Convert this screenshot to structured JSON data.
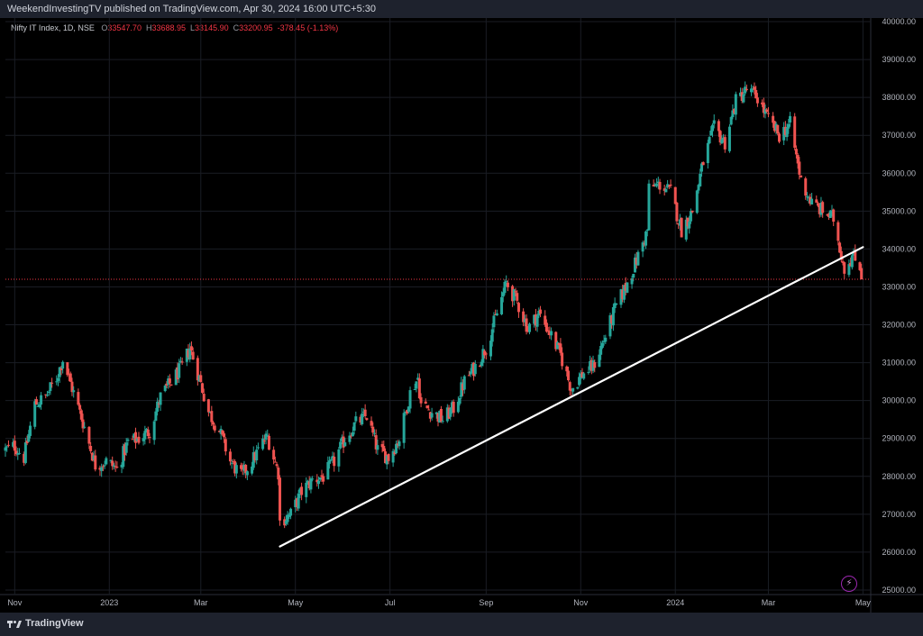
{
  "header": {
    "publisher_text": "WeekendInvestingTV published on TradingView.com, Apr 30, 2024 16:00 UTC+5:30"
  },
  "legend": {
    "symbol": "Nifty IT Index, 1D, NSE",
    "open_label": "O",
    "open": "33547.70",
    "high_label": "H",
    "high": "33688.95",
    "low_label": "L",
    "low": "33145.90",
    "close_label": "C",
    "close": "33200.95",
    "change": "-378.45 (-1.13%)"
  },
  "footer": {
    "brand": "TradingView"
  },
  "colors": {
    "up": "#26a69a",
    "down": "#ef5350",
    "trendline": "#ffffff",
    "price_line": "#f23645",
    "grid": "#1a1d24",
    "axis_text": "#b2b5be"
  },
  "chart_data": {
    "type": "candlestick",
    "price_axis_ticks": [
      "40000.00",
      "39000.00",
      "38000.00",
      "37000.00",
      "36000.00",
      "35000.00",
      "34000.00",
      "33000.00",
      "32000.00",
      "31000.00",
      "30000.00",
      "29000.00",
      "28000.00",
      "27000.00",
      "26000.00",
      "25000.00"
    ],
    "ylim": [
      25000,
      40000
    ],
    "x_axis_labels": [
      "Nov",
      "2023",
      "Mar",
      "May",
      "Jul",
      "Sep",
      "Nov",
      "2024",
      "Mar",
      "May"
    ],
    "x_axis_dates": [
      "2022-11-01",
      "2023-01-01",
      "2023-03-01",
      "2023-05-01",
      "2023-07-01",
      "2023-09-01",
      "2023-11-01",
      "2024-01-01",
      "2024-03-01",
      "2024-05-01"
    ],
    "date_range": [
      "2022-10-26",
      "2024-04-30"
    ],
    "last_price": 33200.95,
    "trendline": {
      "start": {
        "date": "2023-04-21",
        "value": 26150
      },
      "end": {
        "date": "2024-05-01",
        "value": 34050
      }
    },
    "anchor_closes": [
      [
        "2022-10-26",
        28700
      ],
      [
        "2022-11-01",
        28800
      ],
      [
        "2022-11-07",
        28500
      ],
      [
        "2022-11-14",
        29900
      ],
      [
        "2022-11-21",
        30100
      ],
      [
        "2022-11-28",
        30600
      ],
      [
        "2022-12-02",
        31100
      ],
      [
        "2022-12-09",
        30200
      ],
      [
        "2022-12-16",
        29300
      ],
      [
        "2022-12-23",
        28300
      ],
      [
        "2022-12-30",
        28400
      ],
      [
        "2023-01-06",
        28200
      ],
      [
        "2023-01-13",
        28900
      ],
      [
        "2023-01-20",
        29000
      ],
      [
        "2023-01-27",
        29200
      ],
      [
        "2023-02-03",
        30100
      ],
      [
        "2023-02-10",
        30500
      ],
      [
        "2023-02-17",
        30900
      ],
      [
        "2023-02-22",
        31400
      ],
      [
        "2023-02-28",
        30600
      ],
      [
        "2023-03-06",
        29700
      ],
      [
        "2023-03-13",
        29200
      ],
      [
        "2023-03-20",
        28400
      ],
      [
        "2023-03-27",
        28000
      ],
      [
        "2023-04-03",
        28400
      ],
      [
        "2023-04-10",
        28900
      ],
      [
        "2023-04-13",
        29050
      ],
      [
        "2023-04-17",
        28500
      ],
      [
        "2023-04-20",
        28100
      ],
      [
        "2023-04-21",
        26800
      ],
      [
        "2023-04-28",
        27000
      ],
      [
        "2023-05-05",
        27600
      ],
      [
        "2023-05-12",
        27900
      ],
      [
        "2023-05-19",
        28000
      ],
      [
        "2023-05-26",
        28400
      ],
      [
        "2023-06-02",
        29000
      ],
      [
        "2023-06-09",
        29400
      ],
      [
        "2023-06-16",
        29600
      ],
      [
        "2023-06-23",
        28700
      ],
      [
        "2023-06-30",
        28500
      ],
      [
        "2023-07-07",
        29000
      ],
      [
        "2023-07-14",
        30200
      ],
      [
        "2023-07-19",
        30600
      ],
      [
        "2023-07-21",
        29900
      ],
      [
        "2023-07-28",
        29700
      ],
      [
        "2023-08-04",
        29500
      ],
      [
        "2023-08-11",
        29800
      ],
      [
        "2023-08-18",
        30500
      ],
      [
        "2023-08-25",
        30900
      ],
      [
        "2023-09-01",
        31400
      ],
      [
        "2023-09-08",
        32300
      ],
      [
        "2023-09-14",
        33100
      ],
      [
        "2023-09-21",
        32600
      ],
      [
        "2023-09-28",
        31900
      ],
      [
        "2023-10-05",
        32300
      ],
      [
        "2023-10-12",
        31800
      ],
      [
        "2023-10-19",
        31200
      ],
      [
        "2023-10-26",
        30300
      ],
      [
        "2023-11-02",
        30700
      ],
      [
        "2023-11-09",
        30900
      ],
      [
        "2023-11-16",
        31600
      ],
      [
        "2023-11-23",
        32400
      ],
      [
        "2023-11-30",
        33000
      ],
      [
        "2023-12-07",
        33700
      ],
      [
        "2023-12-14",
        34500
      ],
      [
        "2023-12-15",
        35600
      ],
      [
        "2023-12-22",
        35700
      ],
      [
        "2023-12-29",
        35500
      ],
      [
        "2024-01-05",
        34500
      ],
      [
        "2024-01-12",
        35000
      ],
      [
        "2024-01-19",
        36300
      ],
      [
        "2024-01-26",
        37200
      ],
      [
        "2024-02-02",
        36800
      ],
      [
        "2024-02-09",
        37900
      ],
      [
        "2024-02-16",
        38200
      ],
      [
        "2024-02-23",
        38000
      ],
      [
        "2024-03-01",
        37400
      ],
      [
        "2024-03-08",
        37000
      ],
      [
        "2024-03-15",
        37300
      ],
      [
        "2024-03-22",
        35800
      ],
      [
        "2024-03-29",
        35200
      ],
      [
        "2024-04-05",
        35000
      ],
      [
        "2024-04-12",
        34800
      ],
      [
        "2024-04-19",
        33500
      ],
      [
        "2024-04-24",
        33800
      ],
      [
        "2024-04-29",
        33579
      ],
      [
        "2024-04-30",
        33200.95
      ]
    ]
  }
}
